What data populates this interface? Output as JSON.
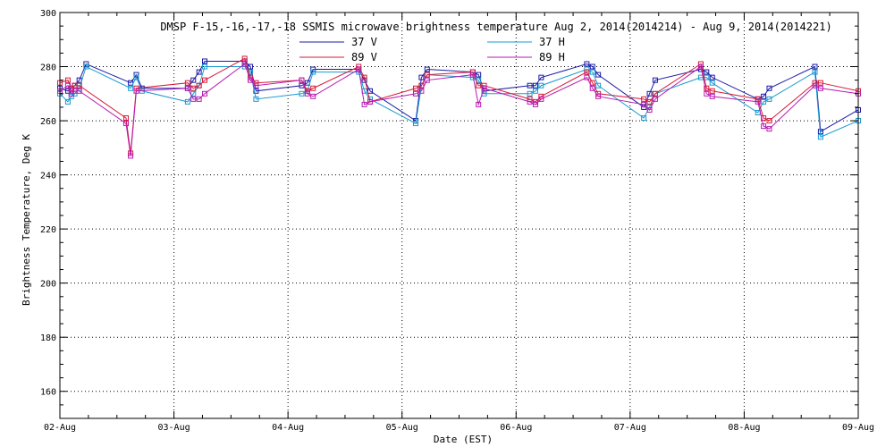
{
  "chart_data": {
    "type": "line",
    "title": "DMSP F-15,-16,-17,-18 SSMIS microwave brightness temperature Aug  2, 2014(2014214) - Aug  9, 2014(2014221)",
    "xlabel": "Date (EST)",
    "ylabel": "Brightness Temperature, Deg K",
    "ylim": [
      150,
      300
    ],
    "yticks": [
      160,
      180,
      200,
      220,
      240,
      260,
      280,
      300
    ],
    "xlim": [
      0,
      7
    ],
    "xticks": [
      {
        "day": 0,
        "label": "02-Aug"
      },
      {
        "day": 1,
        "label": "03-Aug"
      },
      {
        "day": 2,
        "label": "04-Aug"
      },
      {
        "day": 3,
        "label": "05-Aug"
      },
      {
        "day": 4,
        "label": "06-Aug"
      },
      {
        "day": 5,
        "label": "07-Aug"
      },
      {
        "day": 6,
        "label": "08-Aug"
      },
      {
        "day": 7,
        "label": "09-Aug"
      }
    ],
    "grid": true,
    "legend_position": "top-center",
    "series": [
      {
        "name": "37 V",
        "color": "#1a1aa8",
        "x": [
          0.0,
          0.07,
          0.1,
          0.13,
          0.17,
          0.23,
          0.62,
          0.67,
          0.72,
          1.12,
          1.17,
          1.22,
          1.27,
          1.62,
          1.67,
          1.72,
          2.12,
          2.17,
          2.22,
          2.62,
          2.67,
          2.72,
          3.12,
          3.17,
          3.22,
          3.62,
          3.67,
          3.72,
          4.12,
          4.17,
          4.22,
          4.62,
          4.67,
          4.72,
          5.12,
          5.17,
          5.22,
          5.62,
          5.67,
          5.72,
          6.12,
          6.17,
          6.22,
          6.62,
          6.67,
          7.0
        ],
        "y": [
          272,
          271,
          272,
          273,
          275,
          281,
          274,
          277,
          272,
          272,
          275,
          278,
          282,
          282,
          280,
          271,
          273,
          274,
          279,
          279,
          275,
          271,
          260,
          276,
          279,
          278,
          277,
          271,
          273,
          273,
          276,
          281,
          280,
          277,
          265,
          270,
          275,
          279,
          278,
          276,
          268,
          269,
          272,
          280,
          256,
          264
        ]
      },
      {
        "name": "37 H",
        "color": "#1a9ad0",
        "x": [
          0.0,
          0.07,
          0.1,
          0.13,
          0.17,
          0.23,
          0.62,
          0.67,
          0.72,
          1.12,
          1.17,
          1.22,
          1.27,
          1.62,
          1.67,
          1.72,
          2.12,
          2.17,
          2.22,
          2.62,
          2.67,
          2.72,
          3.12,
          3.17,
          3.22,
          3.62,
          3.67,
          3.72,
          4.12,
          4.17,
          4.22,
          4.62,
          4.67,
          4.72,
          5.12,
          5.17,
          5.22,
          5.62,
          5.67,
          5.72,
          6.12,
          6.17,
          6.22,
          6.62,
          6.67,
          7.0
        ],
        "y": [
          270,
          267,
          269,
          270,
          272,
          280,
          272,
          276,
          271,
          267,
          270,
          273,
          280,
          280,
          278,
          268,
          270,
          271,
          278,
          278,
          271,
          268,
          259,
          273,
          277,
          276,
          275,
          270,
          270,
          271,
          273,
          279,
          278,
          273,
          261,
          265,
          270,
          276,
          276,
          274,
          263,
          267,
          268,
          278,
          254,
          260
        ]
      },
      {
        "name": "89 V",
        "color": "#d81a3a",
        "x": [
          0.0,
          0.07,
          0.1,
          0.13,
          0.17,
          0.58,
          0.62,
          0.67,
          1.12,
          1.17,
          1.22,
          1.27,
          1.62,
          1.67,
          1.72,
          2.12,
          2.17,
          2.22,
          2.62,
          2.67,
          2.72,
          3.12,
          3.17,
          3.22,
          3.62,
          3.67,
          3.72,
          4.12,
          4.17,
          4.22,
          4.62,
          4.67,
          4.72,
          5.12,
          5.17,
          5.22,
          5.62,
          5.67,
          5.72,
          6.12,
          6.17,
          6.22,
          6.62,
          6.67,
          7.0
        ],
        "y": [
          274,
          275,
          272,
          273,
          273,
          261,
          248,
          272,
          274,
          272,
          273,
          275,
          283,
          276,
          274,
          275,
          271,
          272,
          280,
          276,
          267,
          272,
          273,
          277,
          278,
          273,
          273,
          268,
          267,
          269,
          278,
          274,
          270,
          268,
          267,
          270,
          281,
          272,
          271,
          268,
          261,
          260,
          274,
          274,
          271
        ]
      },
      {
        "name": "89 H",
        "color": "#b81ab0",
        "x": [
          0.0,
          0.07,
          0.1,
          0.13,
          0.17,
          0.58,
          0.62,
          0.67,
          1.12,
          1.17,
          1.22,
          1.27,
          1.62,
          1.67,
          1.72,
          2.12,
          2.17,
          2.22,
          2.62,
          2.67,
          2.72,
          3.12,
          3.17,
          3.22,
          3.62,
          3.67,
          3.72,
          4.12,
          4.17,
          4.22,
          4.62,
          4.67,
          4.72,
          5.12,
          5.17,
          5.22,
          5.62,
          5.67,
          5.72,
          6.12,
          6.17,
          6.22,
          6.62,
          6.67,
          7.0
        ],
        "y": [
          271,
          273,
          270,
          271,
          271,
          259,
          247,
          271,
          272,
          268,
          268,
          270,
          281,
          275,
          273,
          275,
          270,
          269,
          279,
          266,
          267,
          270,
          271,
          275,
          277,
          266,
          272,
          267,
          266,
          268,
          276,
          272,
          269,
          266,
          264,
          268,
          280,
          270,
          269,
          267,
          258,
          257,
          273,
          272,
          270
        ]
      }
    ]
  }
}
